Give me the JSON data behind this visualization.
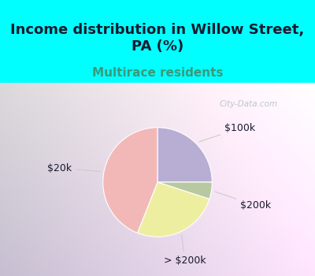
{
  "title": "Income distribution in Willow Street,\nPA (%)",
  "subtitle": "Multirace residents",
  "slices": [
    {
      "label": "$100k",
      "value": 25,
      "color": "#b8aed4"
    },
    {
      "label": "$200k",
      "value": 5,
      "color": "#b8c8a0"
    },
    {
      "label": "> $200k",
      "value": 26,
      "color": "#eeeea0"
    },
    {
      "label": "$20k",
      "value": 44,
      "color": "#f2b8b8"
    }
  ],
  "top_bg_color": "#00FFFF",
  "chart_bg_color": "#d8f0e0",
  "title_fontsize": 13,
  "subtitle_fontsize": 11,
  "subtitle_color": "#3a9a7a",
  "label_fontsize": 9,
  "watermark": "City-Data.com",
  "watermark_color": "#b0bec5",
  "label_color": "#1a1a2e",
  "line_color": "#cccccc"
}
